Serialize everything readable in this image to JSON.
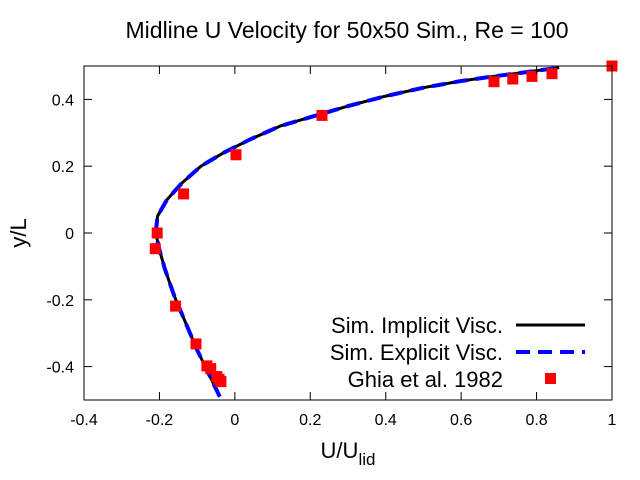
{
  "chart_data": {
    "type": "line",
    "title": "Midline U Velocity for 50x50 Sim., Re = 100",
    "xlabel": "U/U",
    "xlabel_sub": "lid",
    "ylabel": "y/L",
    "xlim": [
      -0.4,
      1
    ],
    "ylim": [
      -0.5,
      0.5
    ],
    "xticks": [
      -0.4,
      -0.2,
      0,
      0.2,
      0.4,
      0.6,
      0.8,
      1
    ],
    "xtick_labels": [
      "-0.4",
      "-0.2",
      "0",
      "0.2",
      "0.4",
      "0.6",
      "0.8",
      "1"
    ],
    "yticks": [
      -0.4,
      -0.2,
      0,
      0.2,
      0.4
    ],
    "ytick_labels": [
      "-0.4",
      "-0.2",
      "0",
      "0.2",
      "0.4"
    ],
    "grid": false,
    "legend_position": "bottom-right",
    "series": [
      {
        "name": "Sim. Implicit Visc.",
        "style": "solid",
        "color": "#000000",
        "x": [
          -0.04,
          -0.07,
          -0.1,
          -0.13,
          -0.16,
          -0.185,
          -0.2,
          -0.21,
          -0.205,
          -0.18,
          -0.14,
          -0.09,
          -0.03,
          0.04,
          0.12,
          0.21,
          0.3,
          0.4,
          0.5,
          0.6,
          0.68,
          0.75,
          0.8,
          0.86
        ],
        "y": [
          -0.49,
          -0.42,
          -0.35,
          -0.27,
          -0.19,
          -0.11,
          -0.05,
          0.0,
          0.05,
          0.1,
          0.15,
          0.2,
          0.24,
          0.28,
          0.32,
          0.35,
          0.38,
          0.41,
          0.435,
          0.455,
          0.468,
          0.478,
          0.486,
          0.495
        ]
      },
      {
        "name": "Sim. Explicit Visc.",
        "style": "dashed",
        "color": "#0000ff",
        "x": [
          -0.04,
          -0.07,
          -0.1,
          -0.13,
          -0.16,
          -0.185,
          -0.2,
          -0.21,
          -0.205,
          -0.18,
          -0.14,
          -0.09,
          -0.03,
          0.04,
          0.12,
          0.21,
          0.3,
          0.4,
          0.5,
          0.6,
          0.68,
          0.75,
          0.8,
          0.86
        ],
        "y": [
          -0.49,
          -0.42,
          -0.35,
          -0.27,
          -0.19,
          -0.11,
          -0.05,
          0.0,
          0.05,
          0.1,
          0.15,
          0.2,
          0.24,
          0.28,
          0.32,
          0.35,
          0.38,
          0.41,
          0.435,
          0.455,
          0.468,
          0.478,
          0.486,
          0.495
        ]
      },
      {
        "name": "Ghia et al. 1982",
        "style": "markers",
        "color": "#ff0000",
        "x": [
          -0.037,
          -0.042,
          -0.048,
          -0.064,
          -0.074,
          -0.103,
          -0.157,
          -0.211,
          -0.206,
          -0.136,
          0.003,
          0.231,
          0.687,
          0.737,
          0.788,
          0.841,
          1.0
        ],
        "y": [
          -0.445,
          -0.438,
          -0.43,
          -0.406,
          -0.398,
          -0.332,
          -0.219,
          -0.047,
          0.0,
          0.117,
          0.234,
          0.352,
          0.453,
          0.461,
          0.469,
          0.477,
          0.5
        ]
      }
    ]
  }
}
